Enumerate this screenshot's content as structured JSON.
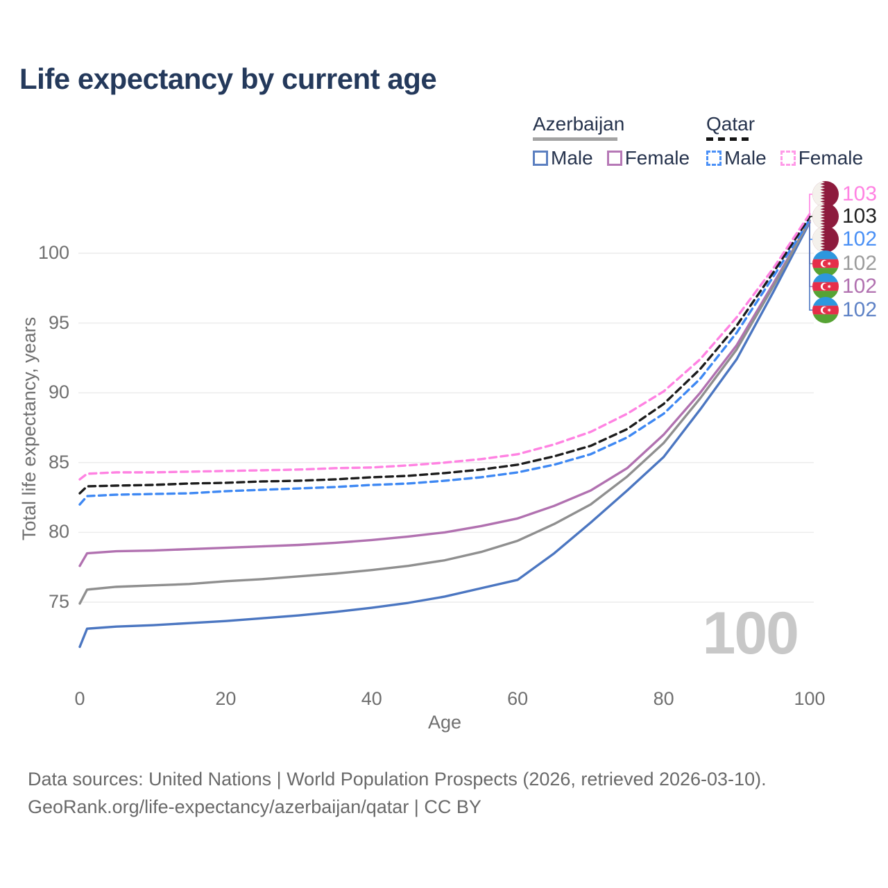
{
  "title": "Life expectancy by current age",
  "legend": {
    "groups": [
      {
        "label": "Azerbaijan",
        "underline_color": "#a3a3a3",
        "underline_style": "solid",
        "items": [
          {
            "label": "Male",
            "color": "#5b7fc0",
            "style": "solid"
          },
          {
            "label": "Female",
            "color": "#b678b6",
            "style": "solid"
          }
        ]
      },
      {
        "label": "Qatar",
        "underline_color": "#141414",
        "underline_style": "dashed",
        "items": [
          {
            "label": "Male",
            "color": "#4a90f7",
            "style": "dashed"
          },
          {
            "label": "Female",
            "color": "#ff9ae8",
            "style": "dashed"
          }
        ]
      }
    ]
  },
  "chart_data": {
    "type": "line",
    "title": "Life expectancy by current age",
    "xlabel": "Age",
    "ylabel": "Total life expectancy, years",
    "x_ticks": [
      0,
      20,
      40,
      60,
      80,
      100
    ],
    "y_ticks": [
      75,
      80,
      85,
      90,
      95,
      100
    ],
    "xlim": [
      0,
      100
    ],
    "ylim": [
      71.5,
      104
    ],
    "grid": true,
    "legend_position": "top-right",
    "x": [
      0,
      1,
      5,
      10,
      15,
      20,
      25,
      30,
      35,
      40,
      45,
      50,
      55,
      60,
      65,
      70,
      75,
      80,
      85,
      90,
      95,
      100
    ],
    "series": [
      {
        "name": "Qatar Female",
        "color": "#ff82e2",
        "dash": true,
        "values": [
          83.8,
          84.2,
          84.3,
          84.3,
          84.35,
          84.4,
          84.45,
          84.5,
          84.6,
          84.65,
          84.8,
          85.0,
          85.25,
          85.6,
          86.3,
          87.2,
          88.5,
          90.1,
          92.4,
          95.4,
          98.9,
          102.8
        ]
      },
      {
        "name": "Qatar Total",
        "color": "#1c1c1c",
        "dash": true,
        "values": [
          82.8,
          83.3,
          83.35,
          83.4,
          83.5,
          83.55,
          83.65,
          83.7,
          83.8,
          83.95,
          84.05,
          84.25,
          84.5,
          84.85,
          85.45,
          86.2,
          87.4,
          89.2,
          91.7,
          94.8,
          98.6,
          102.6
        ]
      },
      {
        "name": "Qatar Male",
        "color": "#3e88f3",
        "dash": true,
        "values": [
          82.0,
          82.6,
          82.7,
          82.75,
          82.8,
          82.95,
          83.05,
          83.15,
          83.25,
          83.4,
          83.5,
          83.7,
          83.95,
          84.3,
          84.85,
          85.6,
          86.8,
          88.5,
          91.0,
          94.3,
          98.3,
          102.4
        ]
      },
      {
        "name": "Azerbaijan Total",
        "color": "#8f8f8f",
        "dash": false,
        "values": [
          74.9,
          75.9,
          76.1,
          76.2,
          76.3,
          76.5,
          76.65,
          76.85,
          77.05,
          77.3,
          77.6,
          78.0,
          78.6,
          79.4,
          80.6,
          82.0,
          84.0,
          86.4,
          89.6,
          93.1,
          97.6,
          102.35
        ]
      },
      {
        "name": "Azerbaijan Female",
        "color": "#b171b0",
        "dash": false,
        "values": [
          77.6,
          78.5,
          78.65,
          78.7,
          78.8,
          78.9,
          79.0,
          79.1,
          79.25,
          79.45,
          79.7,
          80.0,
          80.45,
          81.0,
          81.9,
          83.0,
          84.6,
          87.0,
          90.0,
          93.4,
          97.8,
          102.3
        ]
      },
      {
        "name": "Azerbaijan Male",
        "color": "#4b76c1",
        "dash": false,
        "values": [
          71.8,
          73.1,
          73.25,
          73.35,
          73.5,
          73.65,
          73.85,
          74.05,
          74.3,
          74.6,
          74.95,
          75.4,
          76.0,
          76.6,
          78.5,
          80.7,
          83.0,
          85.4,
          88.8,
          92.4,
          97.2,
          102.2
        ]
      }
    ]
  },
  "end_labels": [
    {
      "flag": "qatar",
      "country": "Qatar",
      "value": "103",
      "color": "#ff82e2"
    },
    {
      "flag": "qatar",
      "country": "Qatar",
      "value": "103",
      "color": "#222222"
    },
    {
      "flag": "qatar",
      "country": "Qatar",
      "value": "102",
      "color": "#4a90f5"
    },
    {
      "flag": "az",
      "country": "Azerbaijan",
      "value": "102",
      "color": "#9c9c9c"
    },
    {
      "flag": "az",
      "country": "Azerbaijan",
      "value": "102",
      "color": "#b171b0"
    },
    {
      "flag": "az",
      "country": "Azerbaijan",
      "value": "102",
      "color": "#5e82c6"
    }
  ],
  "watermark": "100",
  "footer": {
    "line1": "Data sources: United Nations | World Population Prospects (2026, retrieved 2026-03-10).",
    "line2": "GeoRank.org/life-expectancy/azerbaijan/qatar | CC BY"
  }
}
